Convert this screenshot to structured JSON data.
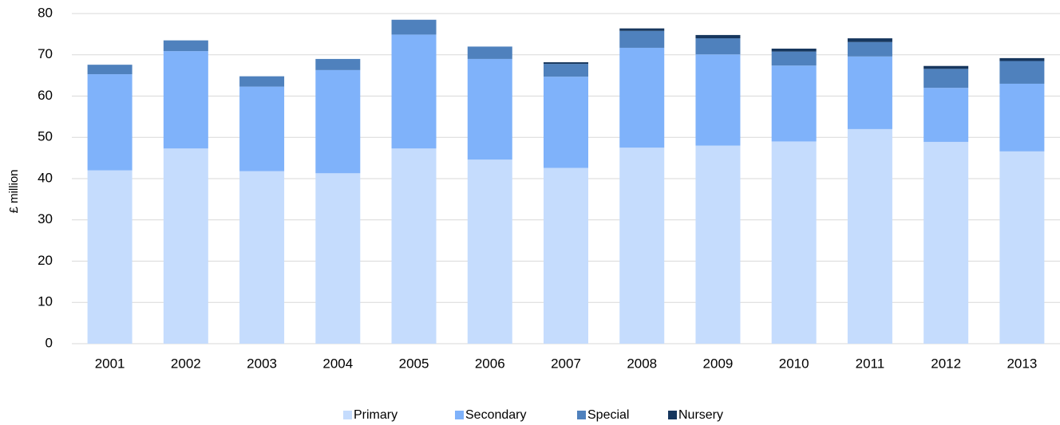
{
  "chart_data": {
    "type": "stacked-bar",
    "y_label": "£ million",
    "categories": [
      "2001",
      "2002",
      "2003",
      "2004",
      "2005",
      "2006",
      "2007",
      "2008",
      "2009",
      "2010",
      "2011",
      "2012",
      "2013"
    ],
    "series": [
      {
        "name": "Primary",
        "color": "#c5dcfd",
        "values": [
          42,
          47.3,
          41.8,
          41.3,
          47.3,
          44.6,
          42.6,
          47.5,
          48,
          49,
          52,
          48.9,
          46.6
        ]
      },
      {
        "name": "Secondary",
        "color": "#7fb2fa",
        "values": [
          23.3,
          23.6,
          20.5,
          25,
          27.6,
          24.4,
          22.1,
          24.2,
          22.1,
          18.4,
          17.6,
          13.1,
          16.4
        ]
      },
      {
        "name": "Special",
        "color": "#4f81bd",
        "values": [
          2.3,
          2.6,
          2.5,
          2.7,
          3.6,
          3,
          3.1,
          4.1,
          3.9,
          3.4,
          3.5,
          4.6,
          5.5
        ]
      },
      {
        "name": "Nursery",
        "color": "#17375e",
        "values": [
          0,
          0,
          0,
          0,
          0,
          0,
          0.4,
          0.6,
          0.8,
          0.7,
          0.9,
          0.7,
          0.7
        ]
      }
    ],
    "ylim": [
      0,
      80
    ],
    "yticks": [
      0,
      10,
      20,
      30,
      40,
      50,
      60,
      70,
      80
    ],
    "grid": true
  }
}
